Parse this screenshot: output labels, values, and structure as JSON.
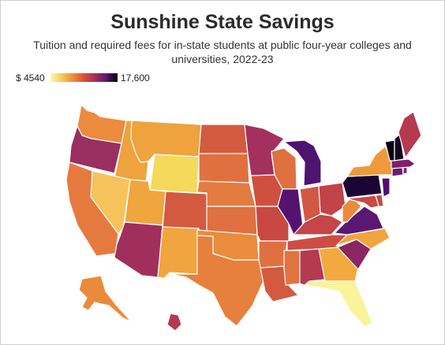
{
  "title": "Sunshine State Savings",
  "subtitle": "Tuition and required fees for in-state students at public four-year colleges and universities, 2022-23",
  "legend": {
    "min_label": "$ 4540",
    "max_label": "17,600",
    "min_value": 4540,
    "max_value": 17600,
    "colors": [
      "#fcf9a4",
      "#f8c95c",
      "#f28c3a",
      "#d5503a",
      "#a12f5b",
      "#5a1873",
      "#000004"
    ]
  },
  "states": {
    "WA": "#ec8a3e",
    "OR": "#9a2f61",
    "ID": "#eea33e",
    "MT": "#eea33e",
    "WY": "#f6d85a",
    "NV": "#f6c25c",
    "CA": "#e57a3f",
    "UT": "#f0a53f",
    "CO": "#d45a3f",
    "AZ": "#a02f5e",
    "NM": "#f0a53f",
    "ND": "#d45a3f",
    "SD": "#e07040",
    "NE": "#e27c40",
    "KS": "#e07040",
    "OK": "#e98c3c",
    "TX": "#e77f3d",
    "MN": "#a3305f",
    "IA": "#d0503f",
    "MO": "#c94942",
    "AR": "#e07040",
    "LA": "#d45a3f",
    "WI": "#e07040",
    "IL": "#551370",
    "MI": "#4e1470",
    "IN": "#d25843",
    "OH": "#c24348",
    "KY": "#c54549",
    "TN": "#cd4d44",
    "MS": "#e17440",
    "AL": "#b53a50",
    "GA": "#f2aa3f",
    "FL": "#f9f39a",
    "SC": "#8b2564",
    "NC": "#f0a53f",
    "VA": "#5a1873",
    "WV": "#ea8b3c",
    "MD": "#c84a44",
    "DE": "#c84a44",
    "PA": "#1a0632",
    "NY": "#ee9a3c",
    "NJ": "#520e6e",
    "CT": "#6a1b73",
    "RI": "#8b2564",
    "MA": "#7d1f6b",
    "VT": "#0b0217",
    "NH": "#16051f",
    "ME": "#b53a50",
    "AK": "#ea8b3c",
    "HI": "#b53a50"
  }
}
